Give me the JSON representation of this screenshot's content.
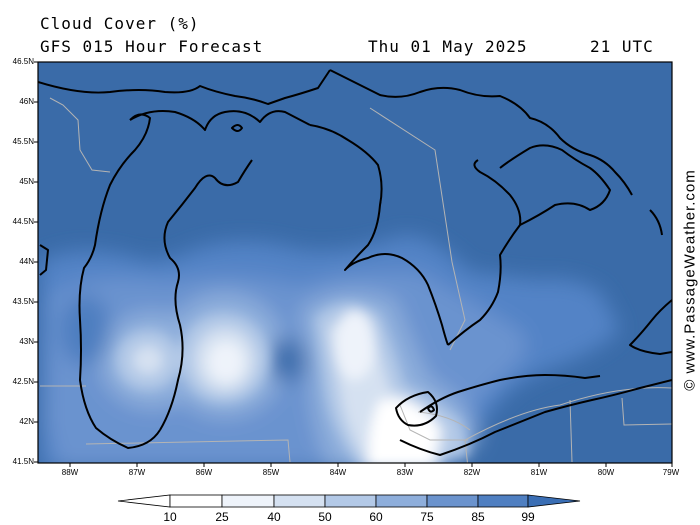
{
  "header": {
    "title": "Cloud Cover (%)",
    "subtitle": "GFS 015 Hour Forecast",
    "date": "Thu 01 May 2025",
    "time": "21 UTC"
  },
  "axes": {
    "latitudes": [
      "46.5N",
      "46N",
      "45.5N",
      "45N",
      "44.5N",
      "44N",
      "43.5N",
      "43N",
      "42.5N",
      "42N",
      "41.5N"
    ],
    "longitudes": [
      "88W",
      "87W",
      "86W",
      "85W",
      "84W",
      "83W",
      "82W",
      "81W",
      "80W",
      "79W"
    ]
  },
  "colorbar": {
    "labels": [
      "10",
      "25",
      "40",
      "50",
      "60",
      "75",
      "85",
      "99"
    ],
    "colors": [
      "#ffffff",
      "#eef3fa",
      "#d5e1f1",
      "#b3c9e7",
      "#8eaedb",
      "#6b93cd",
      "#4f7fc1",
      "#3a6eb4"
    ]
  },
  "credit": "© www.PassageWeather.com",
  "colors": {
    "cloud_high": "#3a6ba8",
    "coastline": "#000000",
    "borders": "#b4b4b4"
  }
}
